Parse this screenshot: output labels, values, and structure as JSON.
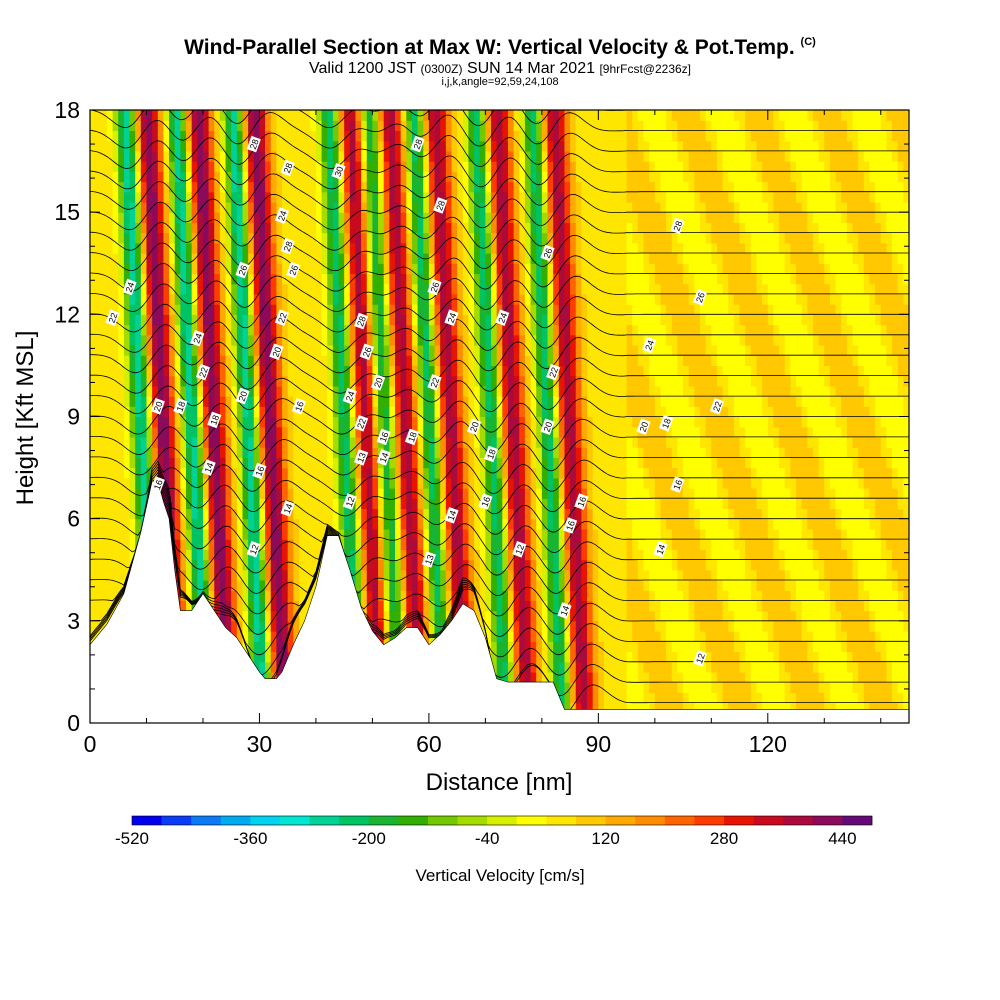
{
  "header": {
    "title": "Wind-Parallel Section at Max W: Vertical Velocity & Pot.Temp.",
    "copyright": "(C)",
    "valid_prefix": "Valid 1200 JST",
    "valid_z": "(0300Z)",
    "valid_suffix": "SUN 14 Mar 2021",
    "forecast": "[9hrFcst@2236z]",
    "params": "i,j,k,angle=92,59,24,108"
  },
  "chart_data": {
    "type": "heatmap",
    "title": "Wind-Parallel Section at Max W: Vertical Velocity & Pot.Temp.",
    "xlabel": "Distance [nm]",
    "ylabel": "Height [Kft MSL]",
    "xlim": [
      0,
      145
    ],
    "ylim": [
      0,
      18
    ],
    "xticks": [
      0,
      30,
      60,
      90,
      120
    ],
    "yticks": [
      0,
      3,
      6,
      9,
      12,
      15,
      18
    ],
    "colorbar": {
      "label": "Vertical Velocity [cm/s]",
      "tick_labels": [
        "-520",
        "-360",
        "-200",
        "-40",
        "120",
        "280",
        "440"
      ],
      "colors": [
        "#0000ee",
        "#0a3df5",
        "#0a7af5",
        "#00aaf0",
        "#00d2f0",
        "#00e6d2",
        "#00d296",
        "#00c364",
        "#18b432",
        "#32af00",
        "#73c800",
        "#a5dc00",
        "#d7f000",
        "#ffff00",
        "#ffe600",
        "#ffc800",
        "#ffaa00",
        "#ff8c00",
        "#ff6400",
        "#ff3c00",
        "#e61400",
        "#c80a1e",
        "#aa0a3c",
        "#8c0a5a",
        "#640a78"
      ]
    },
    "terrain_height": {
      "x": [
        0,
        3,
        6,
        9,
        11,
        12,
        13,
        14,
        15,
        16,
        18,
        20,
        22,
        24,
        26,
        28,
        30,
        31,
        32,
        33,
        34,
        36,
        38,
        40,
        42,
        44,
        46,
        48,
        50,
        52,
        54,
        56,
        58,
        60,
        62,
        64,
        66,
        68,
        70,
        72,
        74,
        76,
        78,
        80,
        82,
        84,
        86,
        88,
        90,
        92,
        94,
        96,
        100,
        110,
        120,
        130,
        140,
        145
      ],
      "y": [
        2.3,
        2.9,
        3.8,
        5.6,
        7.1,
        7.1,
        6.5,
        6.0,
        4.5,
        3.3,
        3.3,
        3.8,
        3.3,
        2.8,
        2.5,
        2.0,
        1.5,
        1.3,
        1.3,
        1.3,
        1.5,
        2.3,
        3.0,
        4.0,
        5.5,
        5.5,
        4.5,
        3.4,
        2.7,
        2.3,
        2.5,
        2.8,
        2.8,
        2.3,
        2.6,
        3.0,
        3.5,
        3.3,
        2.5,
        1.3,
        1.2,
        1.2,
        1.2,
        1.2,
        1.2,
        0.4,
        0.4,
        0.4,
        0.4,
        0.4,
        0.4,
        0.4,
        0.4,
        0.4,
        0.4,
        0.4,
        0.4,
        0.4
      ]
    },
    "theta_labels": [
      {
        "text": "28",
        "x": 29,
        "y": 17.0
      },
      {
        "text": "28",
        "x": 58,
        "y": 17.0
      },
      {
        "text": "30",
        "x": 44,
        "y": 16.2
      },
      {
        "text": "28",
        "x": 35,
        "y": 16.3
      },
      {
        "text": "28",
        "x": 62,
        "y": 15.2
      },
      {
        "text": "24",
        "x": 34,
        "y": 14.9
      },
      {
        "text": "28",
        "x": 35,
        "y": 14.0
      },
      {
        "text": "28",
        "x": 104,
        "y": 14.6
      },
      {
        "text": "26",
        "x": 81,
        "y": 13.8
      },
      {
        "text": "26",
        "x": 27,
        "y": 13.3
      },
      {
        "text": "26",
        "x": 36,
        "y": 13.3
      },
      {
        "text": "26",
        "x": 61,
        "y": 12.8
      },
      {
        "text": "24",
        "x": 7,
        "y": 12.8
      },
      {
        "text": "26",
        "x": 108,
        "y": 12.5
      },
      {
        "text": "22",
        "x": 4,
        "y": 11.9
      },
      {
        "text": "22",
        "x": 34,
        "y": 11.9
      },
      {
        "text": "24",
        "x": 64,
        "y": 11.9
      },
      {
        "text": "24",
        "x": 73,
        "y": 11.9
      },
      {
        "text": "28",
        "x": 48,
        "y": 11.8
      },
      {
        "text": "24",
        "x": 19,
        "y": 11.3
      },
      {
        "text": "24",
        "x": 99,
        "y": 11.1
      },
      {
        "text": "20",
        "x": 33,
        "y": 10.9
      },
      {
        "text": "26",
        "x": 49,
        "y": 10.9
      },
      {
        "text": "22",
        "x": 20,
        "y": 10.3
      },
      {
        "text": "22",
        "x": 82,
        "y": 10.3
      },
      {
        "text": "20",
        "x": 51,
        "y": 10.0
      },
      {
        "text": "22",
        "x": 61,
        "y": 10.0
      },
      {
        "text": "20",
        "x": 27,
        "y": 9.6
      },
      {
        "text": "24",
        "x": 46,
        "y": 9.6
      },
      {
        "text": "18",
        "x": 16,
        "y": 9.3
      },
      {
        "text": "20",
        "x": 12,
        "y": 9.3
      },
      {
        "text": "16",
        "x": 37,
        "y": 9.3
      },
      {
        "text": "22",
        "x": 111,
        "y": 9.3
      },
      {
        "text": "18",
        "x": 22,
        "y": 8.9
      },
      {
        "text": "22",
        "x": 48,
        "y": 8.8
      },
      {
        "text": "20",
        "x": 68,
        "y": 8.7
      },
      {
        "text": "20",
        "x": 81,
        "y": 8.7
      },
      {
        "text": "20",
        "x": 98,
        "y": 8.7
      },
      {
        "text": "18",
        "x": 102,
        "y": 8.8
      },
      {
        "text": "16",
        "x": 52,
        "y": 8.4
      },
      {
        "text": "18",
        "x": 57,
        "y": 8.4
      },
      {
        "text": "18",
        "x": 71,
        "y": 7.9
      },
      {
        "text": "13",
        "x": 48,
        "y": 7.8
      },
      {
        "text": "14",
        "x": 52,
        "y": 7.8
      },
      {
        "text": "14",
        "x": 21,
        "y": 7.5
      },
      {
        "text": "16",
        "x": 30,
        "y": 7.4
      },
      {
        "text": "16",
        "x": 104,
        "y": 7.0
      },
      {
        "text": "16",
        "x": 12,
        "y": 7.0
      },
      {
        "text": "12",
        "x": 46,
        "y": 6.5
      },
      {
        "text": "16",
        "x": 70,
        "y": 6.5
      },
      {
        "text": "16",
        "x": 87,
        "y": 6.5
      },
      {
        "text": "14",
        "x": 35,
        "y": 6.3
      },
      {
        "text": "14",
        "x": 64,
        "y": 6.1
      },
      {
        "text": "16",
        "x": 85,
        "y": 5.8
      },
      {
        "text": "12",
        "x": 29,
        "y": 5.1
      },
      {
        "text": "12",
        "x": 76,
        "y": 5.1
      },
      {
        "text": "14",
        "x": 101,
        "y": 5.1
      },
      {
        "text": "13",
        "x": 60,
        "y": 4.8
      },
      {
        "text": "14",
        "x": 84,
        "y": 3.3
      },
      {
        "text": "12",
        "x": 108,
        "y": 1.9
      }
    ]
  }
}
